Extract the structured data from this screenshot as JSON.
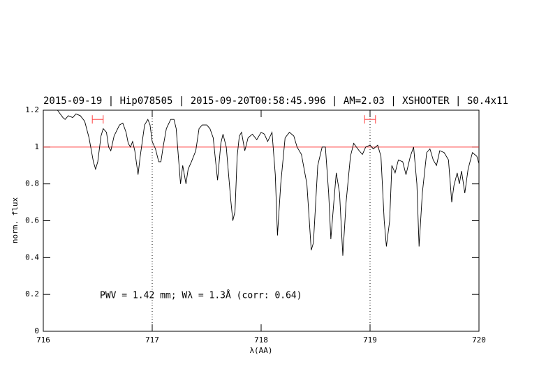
{
  "chart_data": {
    "type": "line",
    "title": "2015-09-19 | Hip078505 | 2015-09-20T00:58:45.996 | AM=2.03 | XSHOOTER | S0.4x11",
    "annotation": "PWV = 1.42 mm; Wλ = 1.3Å (corr: 0.64)",
    "xlabel": "λ(AA)",
    "ylabel": "norm. flux",
    "xlim": [
      716,
      720
    ],
    "ylim": [
      0,
      1.2
    ],
    "xticks": [
      716,
      717,
      718,
      719,
      720
    ],
    "yticks": [
      0,
      0.2,
      0.4,
      0.6,
      0.8,
      1,
      1.2
    ],
    "hline": 1,
    "hline_color": "#ff4040",
    "vlines": [
      717,
      719
    ],
    "markers": [
      {
        "x": [
          716.45,
          716.55
        ],
        "y": 1.15
      },
      {
        "x": [
          718.95,
          719.05
        ],
        "y": 1.15
      }
    ],
    "marker_color": "#ff4040",
    "title_color": "#0000ff",
    "series": [
      {
        "name": "spectrum",
        "color": "#000000",
        "x": [
          716.13,
          716.18,
          716.2,
          716.23,
          716.27,
          716.3,
          716.34,
          716.38,
          716.42,
          716.46,
          716.48,
          716.5,
          716.53,
          716.55,
          716.58,
          716.6,
          716.62,
          716.65,
          716.7,
          716.73,
          716.76,
          716.78,
          716.8,
          716.82,
          716.84,
          716.87,
          716.89,
          716.93,
          716.96,
          716.98,
          717.0,
          717.03,
          717.06,
          717.08,
          717.1,
          717.13,
          717.17,
          717.2,
          717.22,
          717.26,
          717.28,
          717.31,
          717.33,
          717.36,
          717.4,
          717.43,
          717.46,
          717.5,
          717.53,
          717.56,
          717.6,
          717.63,
          717.65,
          717.68,
          717.72,
          717.74,
          717.76,
          717.78,
          717.8,
          717.82,
          717.85,
          717.88,
          717.92,
          717.96,
          718.0,
          718.03,
          718.06,
          718.1,
          718.13,
          718.15,
          718.18,
          718.22,
          718.26,
          718.3,
          718.33,
          718.37,
          718.42,
          718.46,
          718.48,
          718.52,
          718.56,
          718.59,
          718.62,
          718.64,
          718.67,
          718.69,
          718.72,
          718.75,
          718.78,
          718.82,
          718.85,
          718.9,
          718.93,
          718.96,
          719.0,
          719.03,
          719.07,
          719.1,
          719.13,
          719.15,
          719.18,
          719.2,
          719.23,
          719.26,
          719.3,
          719.33,
          719.37,
          719.4,
          719.43,
          719.45,
          719.48,
          719.52,
          719.55,
          719.58,
          719.61,
          719.64,
          719.68,
          719.72,
          719.75,
          719.77,
          719.8,
          719.82,
          719.84,
          719.87,
          719.9,
          719.94,
          719.98,
          720.0
        ],
        "values": [
          1.2,
          1.16,
          1.15,
          1.17,
          1.16,
          1.18,
          1.17,
          1.14,
          1.05,
          0.92,
          0.88,
          0.92,
          1.06,
          1.1,
          1.08,
          1.0,
          0.98,
          1.06,
          1.12,
          1.13,
          1.08,
          1.02,
          1.0,
          1.03,
          0.98,
          0.85,
          0.95,
          1.12,
          1.15,
          1.12,
          1.03,
          0.99,
          0.92,
          0.92,
          1.0,
          1.1,
          1.15,
          1.15,
          1.1,
          0.8,
          0.9,
          0.8,
          0.88,
          0.92,
          0.98,
          1.1,
          1.12,
          1.12,
          1.1,
          1.05,
          0.82,
          1.02,
          1.07,
          1.0,
          0.72,
          0.6,
          0.65,
          0.95,
          1.06,
          1.08,
          0.98,
          1.05,
          1.07,
          1.04,
          1.08,
          1.07,
          1.03,
          1.08,
          0.85,
          0.52,
          0.8,
          1.05,
          1.08,
          1.06,
          1.0,
          0.96,
          0.8,
          0.44,
          0.48,
          0.9,
          1.0,
          1.0,
          0.75,
          0.5,
          0.72,
          0.86,
          0.75,
          0.41,
          0.7,
          0.95,
          1.02,
          0.98,
          0.96,
          1.0,
          1.01,
          0.99,
          1.01,
          0.95,
          0.6,
          0.46,
          0.6,
          0.9,
          0.86,
          0.93,
          0.92,
          0.85,
          0.95,
          1.0,
          0.8,
          0.46,
          0.75,
          0.97,
          0.99,
          0.93,
          0.9,
          0.98,
          0.97,
          0.93,
          0.7,
          0.79,
          0.86,
          0.8,
          0.87,
          0.75,
          0.88,
          0.97,
          0.95,
          0.91
        ]
      }
    ]
  }
}
